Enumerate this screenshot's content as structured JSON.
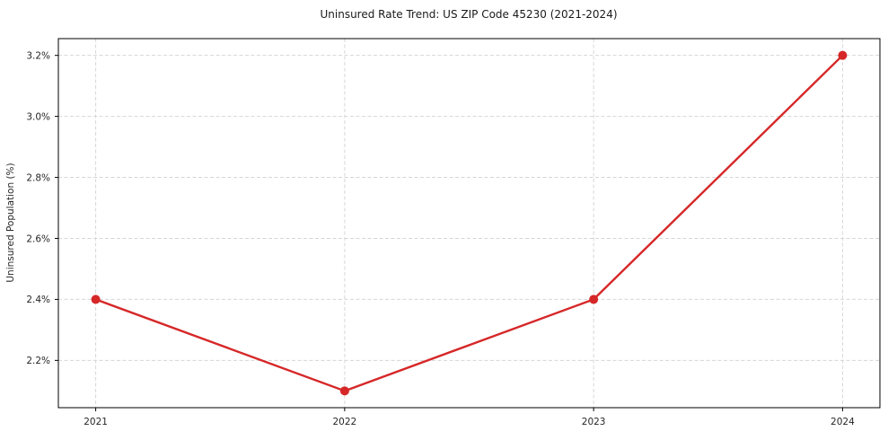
{
  "chart_data": {
    "type": "line",
    "title": "Uninsured Rate Trend: US ZIP Code 45230 (2021-2024)",
    "xlabel": "",
    "ylabel": "Uninsured Population (%)",
    "x": [
      2021,
      2022,
      2023,
      2024
    ],
    "x_tick_labels": [
      "2021",
      "2022",
      "2023",
      "2024"
    ],
    "values": [
      2.4,
      2.1,
      2.4,
      3.2
    ],
    "y_ticks": [
      2.2,
      2.4,
      2.6,
      2.8,
      3.0,
      3.2
    ],
    "y_tick_labels": [
      "2.2%",
      "2.4%",
      "2.6%",
      "2.8%",
      "3.0%",
      "3.2%"
    ],
    "ylim": [
      2.045,
      3.255
    ],
    "xlim": [
      2020.85,
      2024.15
    ],
    "grid": true,
    "legend": "none",
    "colors": {
      "line": "#d62728",
      "marker": "#d62728",
      "grid": "#d6d6d6",
      "axis": "#000000",
      "text": "#262626",
      "background": "#ffffff"
    }
  }
}
